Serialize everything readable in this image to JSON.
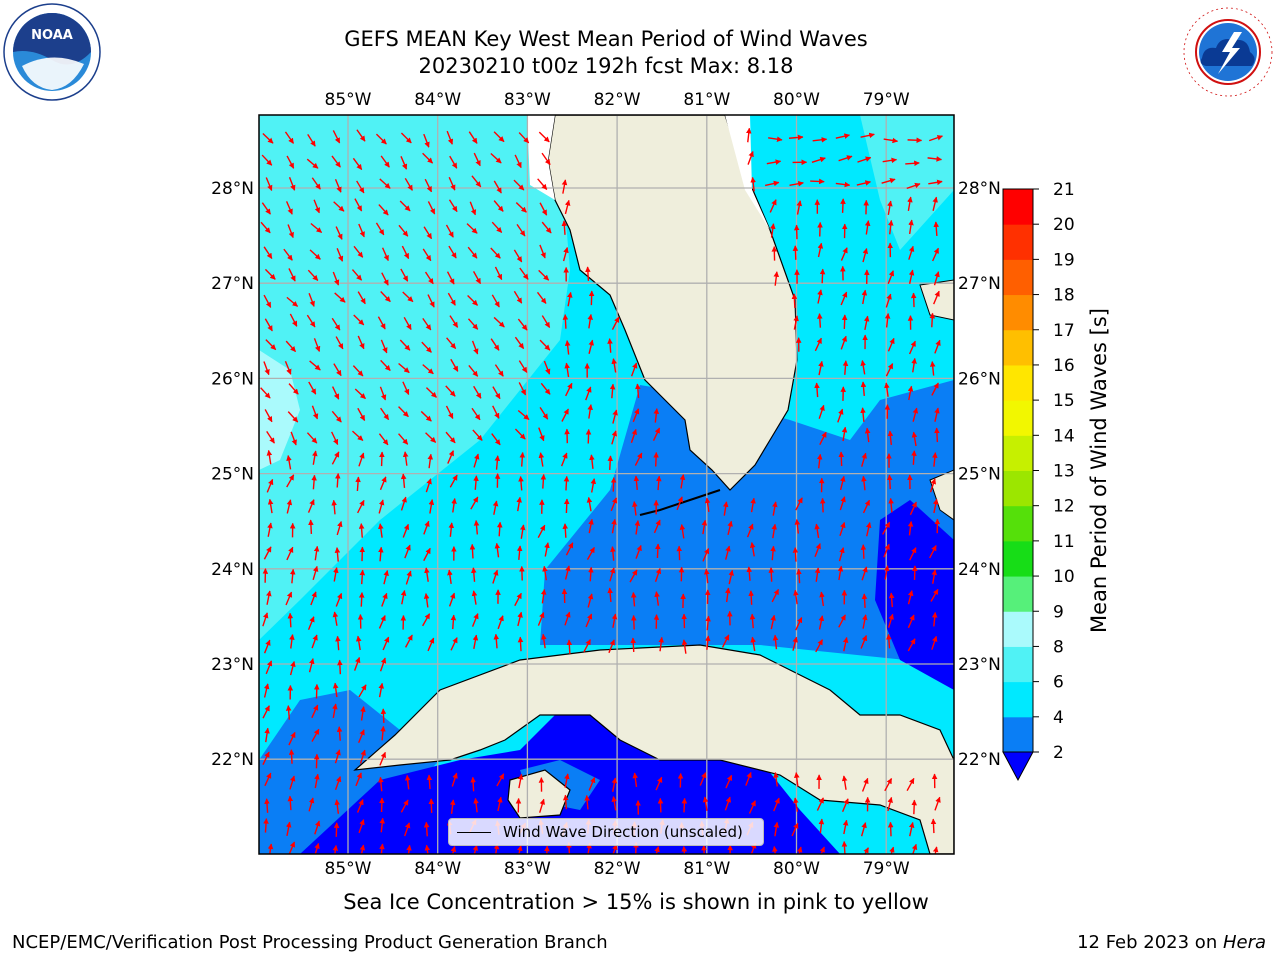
{
  "title_line1": "GEFS MEAN Key West Mean Period of Wind Waves",
  "title_line2": "20230210 t00z 192h fcst   Max: 8.18",
  "lon_ticks": [
    "85°W",
    "84°W",
    "83°W",
    "82°W",
    "81°W",
    "80°W",
    "79°W"
  ],
  "lat_ticks": [
    "28°N",
    "27°N",
    "26°N",
    "25°N",
    "24°N",
    "23°N",
    "22°N"
  ],
  "colorbar": {
    "label": "Mean Period of Wind Waves [s]",
    "ticks": [
      "2",
      "4",
      "6",
      "8",
      "9",
      "10",
      "11",
      "12",
      "13",
      "14",
      "15",
      "16",
      "17",
      "18",
      "19",
      "20",
      "21"
    ],
    "colors": [
      "#0000ff",
      "#0a7ef5",
      "#00e9ff",
      "#50f2f5",
      "#aafafc",
      "#56f07a",
      "#17dd17",
      "#55e00a",
      "#9ce600",
      "#c6f000",
      "#f2f700",
      "#ffe600",
      "#ffbf00",
      "#ff8c00",
      "#ff5f00",
      "#ff3000",
      "#ff0000"
    ]
  },
  "legend_label": "Wind Wave Direction (unscaled)",
  "logos": {
    "noaa": "NOAA",
    "nws": "NATIONAL WEATHER SERVICE"
  },
  "footer_note": "Sea Ice Concentration > 15% is shown in pink to yellow",
  "footer_left": "NCEP/EMC/Verification Post Processing Product Generation Branch",
  "footer_right_prefix": "12 Feb 2023 on ",
  "footer_right_host": "Hera",
  "map_colors": {
    "land": "#efeedc",
    "grid": "#b0b0b0",
    "arrow": "#ff0000",
    "coast": "#000000"
  }
}
